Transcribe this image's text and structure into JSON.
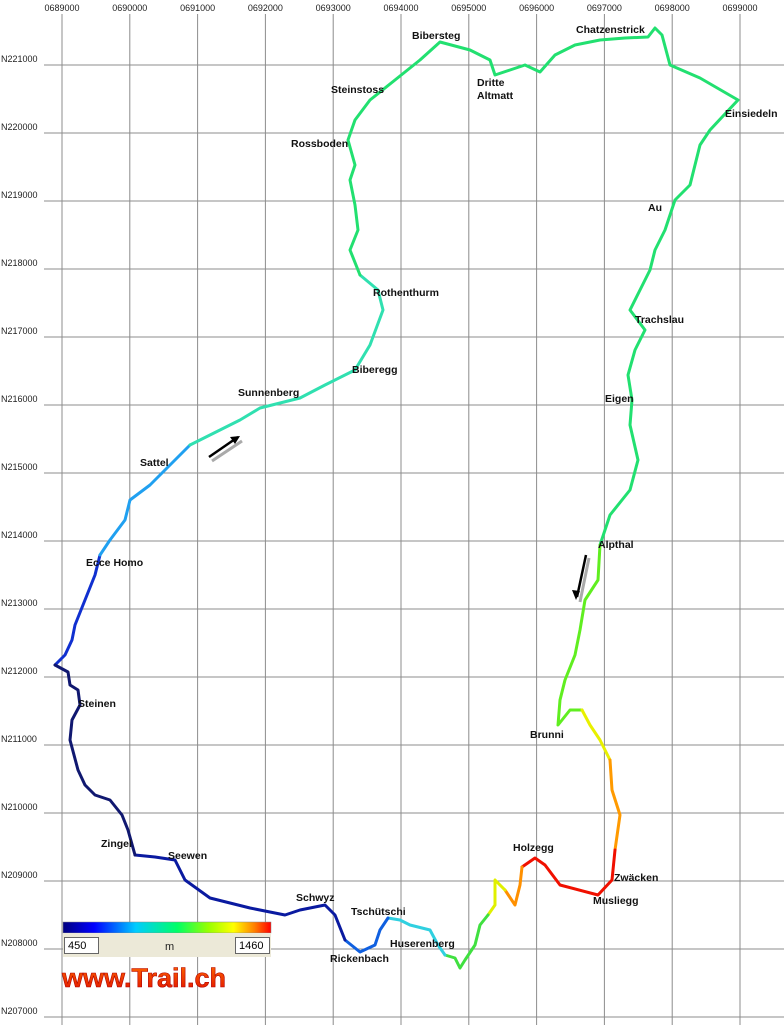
{
  "grid": {
    "x_labels": [
      "0689000",
      "0690000",
      "0691000",
      "0692000",
      "0693000",
      "0694000",
      "0695000",
      "0696000",
      "0697000",
      "0698000",
      "0699000"
    ],
    "y_labels": [
      "N221000",
      "N220000",
      "N219000",
      "N218000",
      "N217000",
      "N216000",
      "N215000",
      "N214000",
      "N213000",
      "N212000",
      "N211000",
      "N210000",
      "N209000",
      "N208000",
      "N207000"
    ]
  },
  "places": [
    "Bibersteg",
    "Chatzenstrick",
    "Steinstoss",
    "Dritte Altmatt",
    "Einsiedeln",
    "Rossboden",
    "Au",
    "Rothenthurm",
    "Trachslau",
    "Biberegg",
    "Sunnenberg",
    "Eigen",
    "Sattel",
    "Alpthal",
    "Ecce Homo",
    "Steinen",
    "Brunni",
    "Holzegg",
    "Zingel",
    "Seewen",
    "Zwäcken",
    "Schwyz",
    "Musliegg",
    "Tschütschi",
    "Huserenberg",
    "Rickenbach"
  ],
  "legend": {
    "min": 450,
    "unit": "m",
    "max": 1460
  },
  "logo": "www.Trail.ch"
}
